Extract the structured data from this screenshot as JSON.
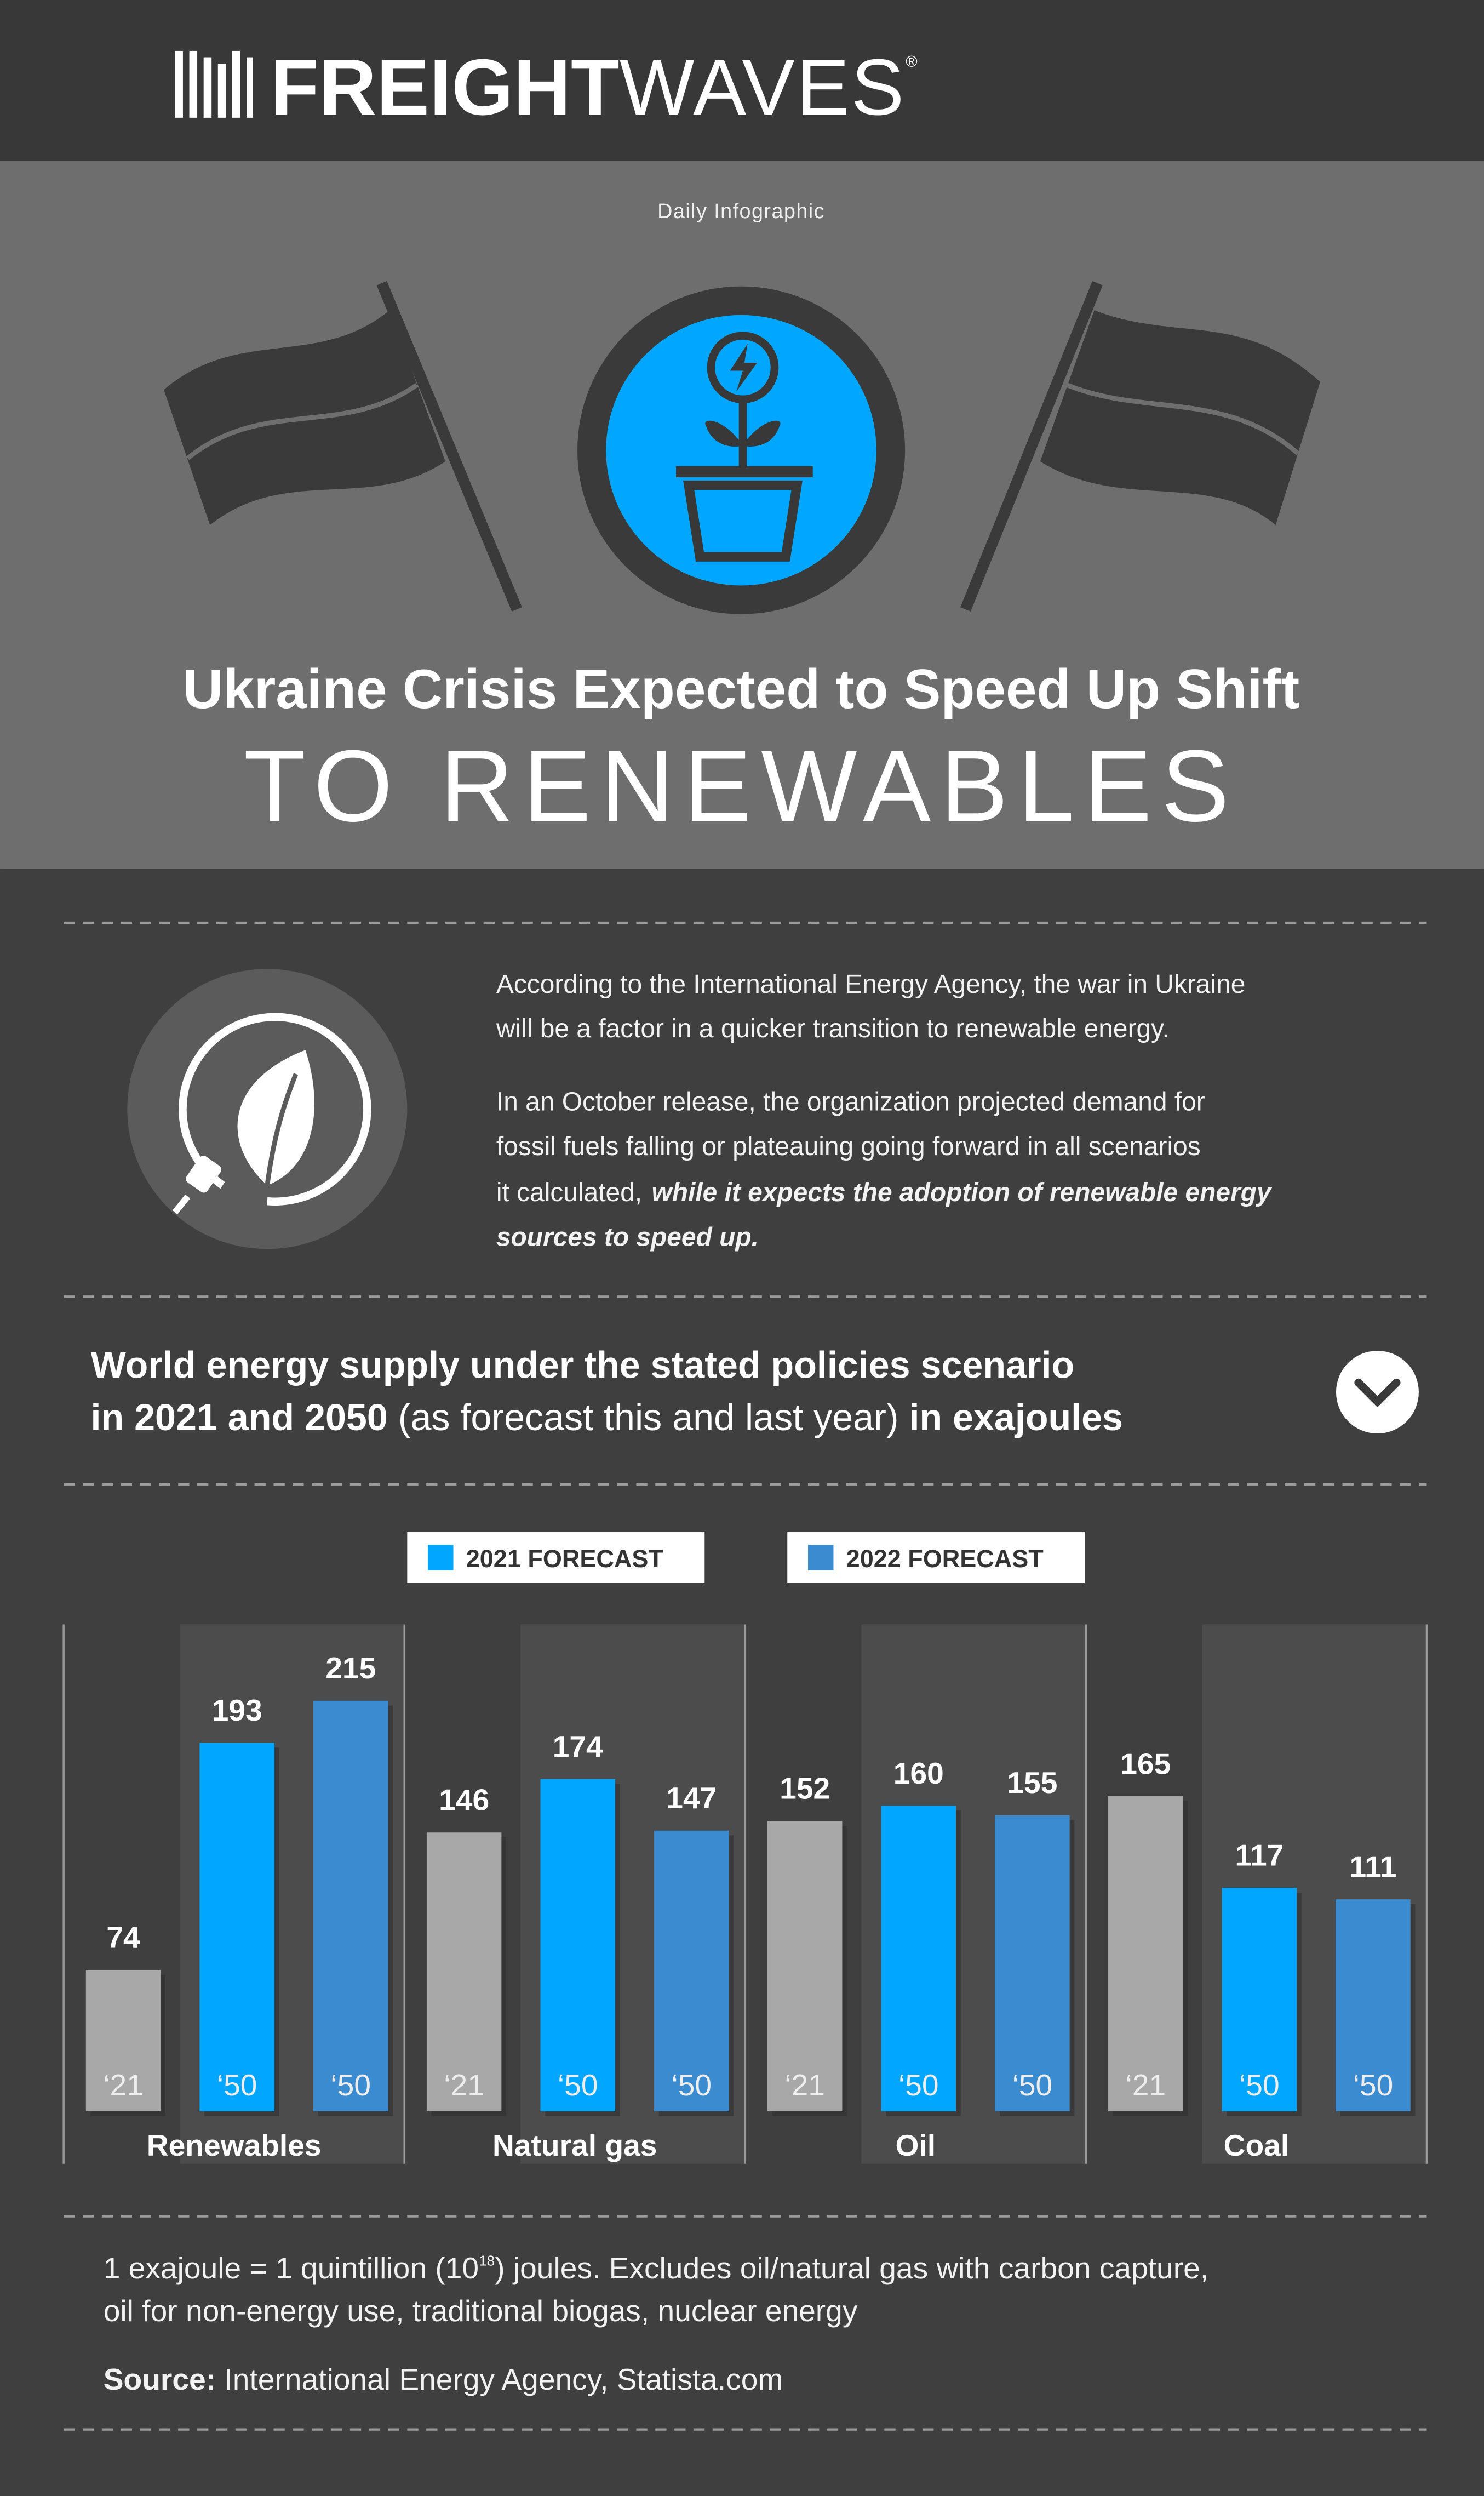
{
  "header": {
    "brand_bold": "FREIGHT",
    "brand_light": "WAVES",
    "registered": "®",
    "kicker": "Daily Infographic",
    "title": "Ukraine Crisis Expected to Speed Up Shift",
    "title_large": "TO RENEWABLES"
  },
  "intro": {
    "paragraph_1": [
      "According to the International Energy Agency, the war in Ukraine",
      "will be a factor in a quicker transition to renewable energy."
    ],
    "paragraph_2": [
      "In an October release, the organization projected demand for",
      "fossil fuels falling or plateauing going forward in all scenarios",
      "it calculated,"
    ],
    "paragraph_2_emphasis": [
      "while it expects the adoption of renewable energy",
      "sources to speed up."
    ]
  },
  "chart_data": {
    "type": "bar",
    "title_lines": [
      [
        {
          "text": "World energy supply under the stated policies scenario",
          "bold": true
        }
      ],
      [
        {
          "text": "in 2021 and 2050",
          "bold": true
        },
        {
          "text": " (as forecast this and last year)",
          "bold": false
        },
        {
          "text": " in exajoules",
          "bold": true
        }
      ]
    ],
    "categories": [
      "Renewables",
      "Natural gas",
      "Oil",
      "Coal"
    ],
    "series": [
      {
        "bar_label": "‘21",
        "color": "#a8a8a8",
        "values": [
          74,
          146,
          152,
          165
        ]
      },
      {
        "name": "2021 FORECAST",
        "bar_label": "‘50",
        "color": "#00a6ff",
        "values": [
          193,
          174,
          160,
          117
        ]
      },
      {
        "name": "2022 FORECAST",
        "bar_label": "‘50",
        "color": "#3b8bd0",
        "values": [
          215,
          147,
          155,
          111
        ]
      }
    ],
    "ylim": [
      0,
      250
    ]
  },
  "footnote": {
    "line_1_before": "1 exajoule = 1 quintillion (10",
    "superscript": "18",
    "line_1_after": ") joules. Excludes oil/natural gas with carbon capture,",
    "line_2": "oil for non-energy use, traditional biogas, nuclear energy"
  },
  "source": {
    "label": "Source:",
    "text": " International Energy Agency, Statista.com"
  }
}
